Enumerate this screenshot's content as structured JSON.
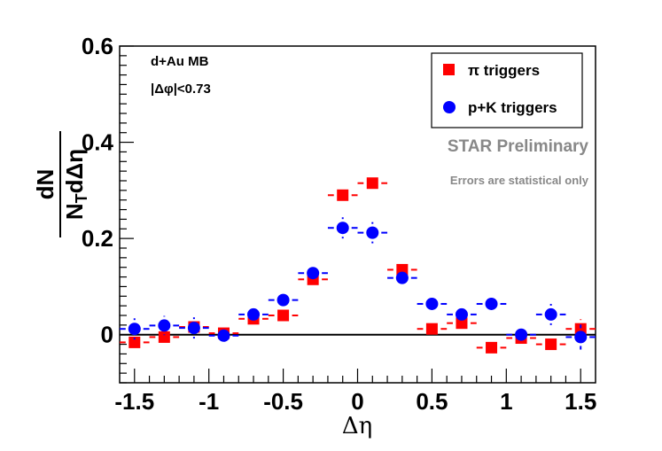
{
  "chart_data": {
    "type": "scatter",
    "title": "",
    "xlabel": "Δη",
    "ylabel": {
      "numerator": "dN",
      "denominator_main": "N",
      "denominator_sub": "T",
      "denominator_tail": "dΔη"
    },
    "xlim": [
      -1.6,
      1.6
    ],
    "ylim": [
      -0.1,
      0.6
    ],
    "x_ticks": [
      -1.5,
      -1,
      -0.5,
      0,
      0.5,
      1,
      1.5
    ],
    "x_tick_labels": [
      "-1.5",
      "-1",
      "-0.5",
      "0",
      "0.5",
      "1",
      "1.5"
    ],
    "y_ticks": [
      0,
      0.2,
      0.4,
      0.6
    ],
    "y_tick_labels": [
      "0",
      "0.2",
      "0.4",
      "0.6"
    ],
    "bin_half_width": 0.1,
    "series": [
      {
        "name": "π triggers",
        "marker": "square",
        "color": "#ff0000",
        "x": [
          -1.5,
          -1.3,
          -1.1,
          -0.9,
          -0.7,
          -0.5,
          -0.3,
          -0.1,
          0.1,
          0.3,
          0.5,
          0.7,
          0.9,
          1.1,
          1.3,
          1.5
        ],
        "y": [
          -0.016,
          -0.005,
          0.016,
          0.003,
          0.033,
          0.04,
          0.115,
          0.29,
          0.315,
          0.135,
          0.012,
          0.024,
          -0.027,
          -0.007,
          -0.02,
          0.012
        ],
        "err": [
          0.018,
          0.014,
          0.014,
          0.012,
          0.012,
          0.01,
          0.012,
          0.016,
          0.018,
          0.012,
          0.01,
          0.012,
          0.01,
          0.012,
          0.012,
          0.02
        ]
      },
      {
        "name": "p+K triggers",
        "marker": "circle",
        "color": "#0000ff",
        "x": [
          -1.5,
          -1.3,
          -1.1,
          -0.9,
          -0.7,
          -0.5,
          -0.3,
          -0.1,
          0.1,
          0.3,
          0.5,
          0.7,
          0.9,
          1.1,
          1.3,
          1.5
        ],
        "y": [
          0.012,
          0.019,
          0.014,
          -0.002,
          0.042,
          0.072,
          0.128,
          0.222,
          0.212,
          0.118,
          0.064,
          0.042,
          0.064,
          0.0,
          0.042,
          -0.005
        ],
        "err": [
          0.022,
          0.02,
          0.022,
          0.016,
          0.016,
          0.016,
          0.018,
          0.022,
          0.022,
          0.018,
          0.016,
          0.016,
          0.016,
          0.016,
          0.022,
          0.026
        ]
      }
    ],
    "annotations": [
      "d+Au MB",
      "|Δφ|<0.73"
    ],
    "watermark": "STAR Preliminary",
    "note": "Errors are statistical only",
    "legend_position": "top-right",
    "grid": false
  }
}
